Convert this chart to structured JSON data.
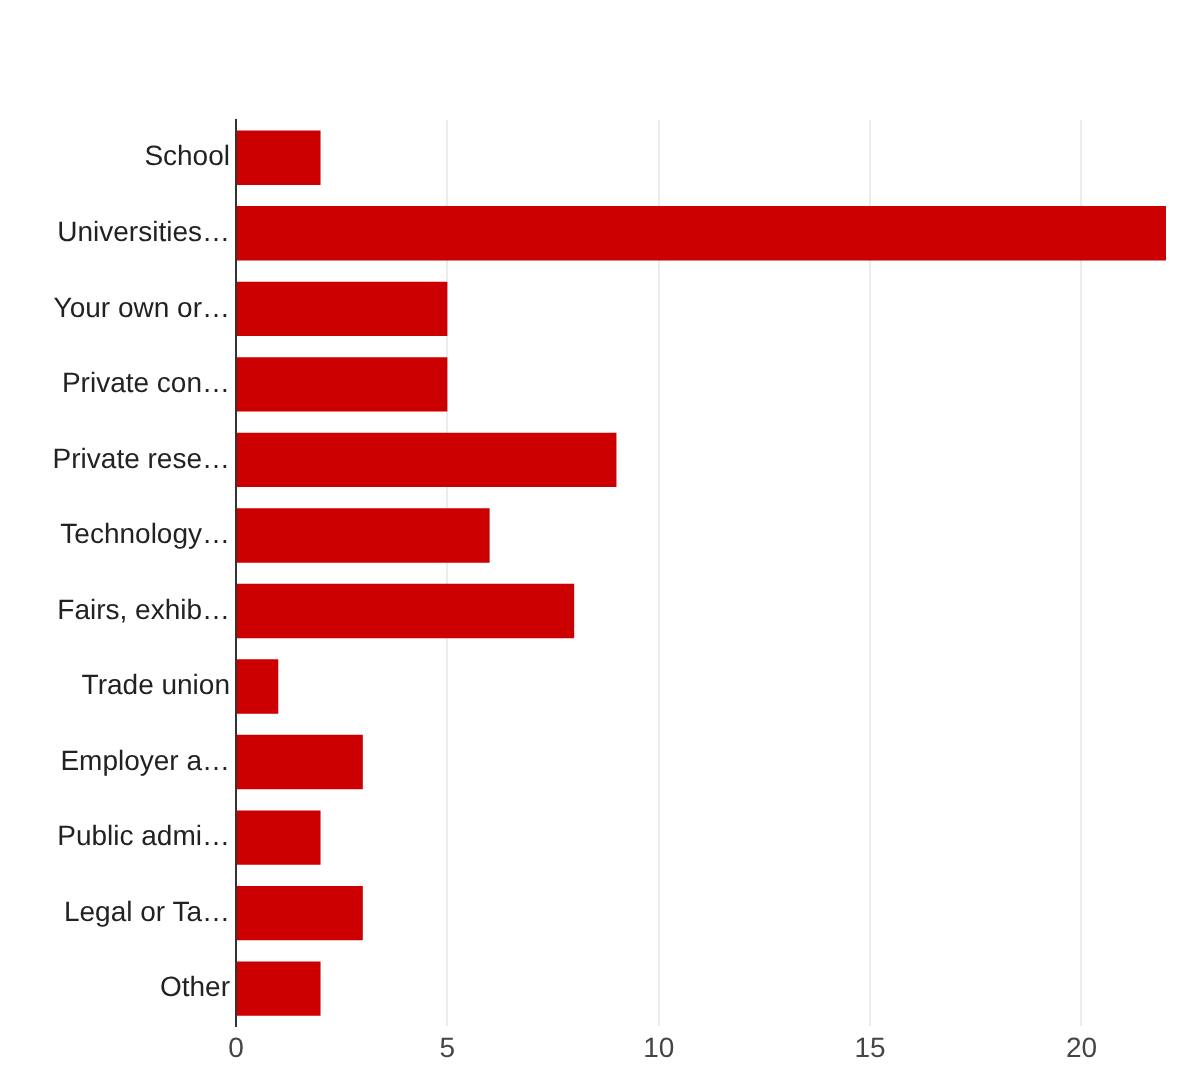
{
  "chart_data": {
    "type": "bar",
    "orientation": "horizontal",
    "categories": [
      "School",
      "Universities…",
      "Your own or…",
      "Private con…",
      "Private rese…",
      "Technology…",
      "Fairs, exhib…",
      "Trade union",
      "Employer a…",
      "Public admi…",
      "Legal or Ta…",
      "Other"
    ],
    "values": [
      2,
      22,
      5,
      5,
      9,
      6,
      8,
      1,
      3,
      2,
      3,
      2
    ],
    "color": "#cc0000",
    "xlim": [
      0,
      22
    ],
    "xticks": [
      0,
      5,
      10,
      15,
      20
    ],
    "grid": "x"
  }
}
